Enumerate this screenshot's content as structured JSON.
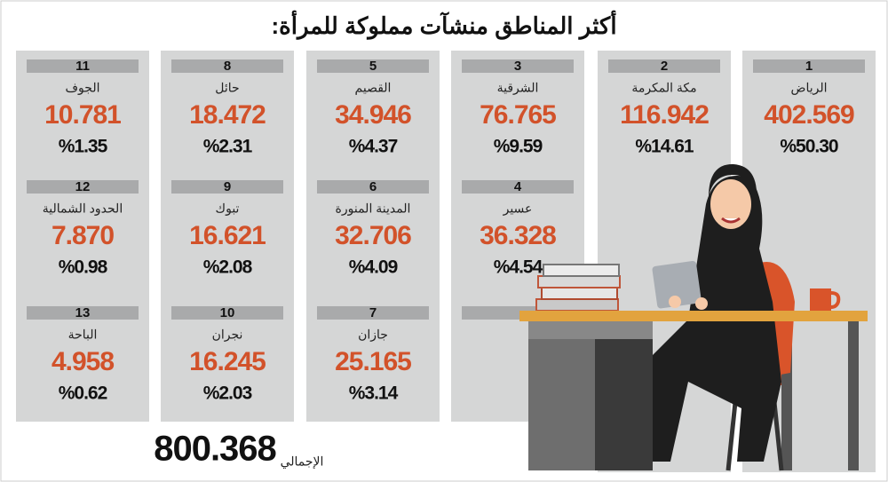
{
  "header": {
    "title": "أكثر المناطق منشآت مملوكة للمرأة:"
  },
  "regions": [
    {
      "rank": 1,
      "name": "الرياض",
      "value": "402.569",
      "percent": "%50.30"
    },
    {
      "rank": 2,
      "name": "مكة المكرمة",
      "value": "116.942",
      "percent": "%14.61"
    },
    {
      "rank": 3,
      "name": "الشرقية",
      "value": "76.765",
      "percent": "%9.59"
    },
    {
      "rank": 4,
      "name": "عسير",
      "value": "36.328",
      "percent": "%4.54"
    },
    {
      "rank": 5,
      "name": "القصيم",
      "value": "34.946",
      "percent": "%4.37"
    },
    {
      "rank": 6,
      "name": "المدينة المنورة",
      "value": "32.706",
      "percent": "%4.09"
    },
    {
      "rank": 7,
      "name": "جازان",
      "value": "25.165",
      "percent": "%3.14"
    },
    {
      "rank": 8,
      "name": "حائل",
      "value": "18.472",
      "percent": "%2.31"
    },
    {
      "rank": 9,
      "name": "تبوك",
      "value": "16.621",
      "percent": "%2.08"
    },
    {
      "rank": 10,
      "name": "نجران",
      "value": "16.245",
      "percent": "%2.03"
    },
    {
      "rank": 11,
      "name": "الجوف",
      "value": "10.781",
      "percent": "%1.35"
    },
    {
      "rank": 12,
      "name": "الحدود الشمالية",
      "value": "7.870",
      "percent": "%0.98"
    },
    {
      "rank": 13,
      "name": "الباحة",
      "value": "4.958",
      "percent": "%0.62"
    }
  ],
  "total": {
    "label": "الإجمالي",
    "value": "800.368"
  }
}
